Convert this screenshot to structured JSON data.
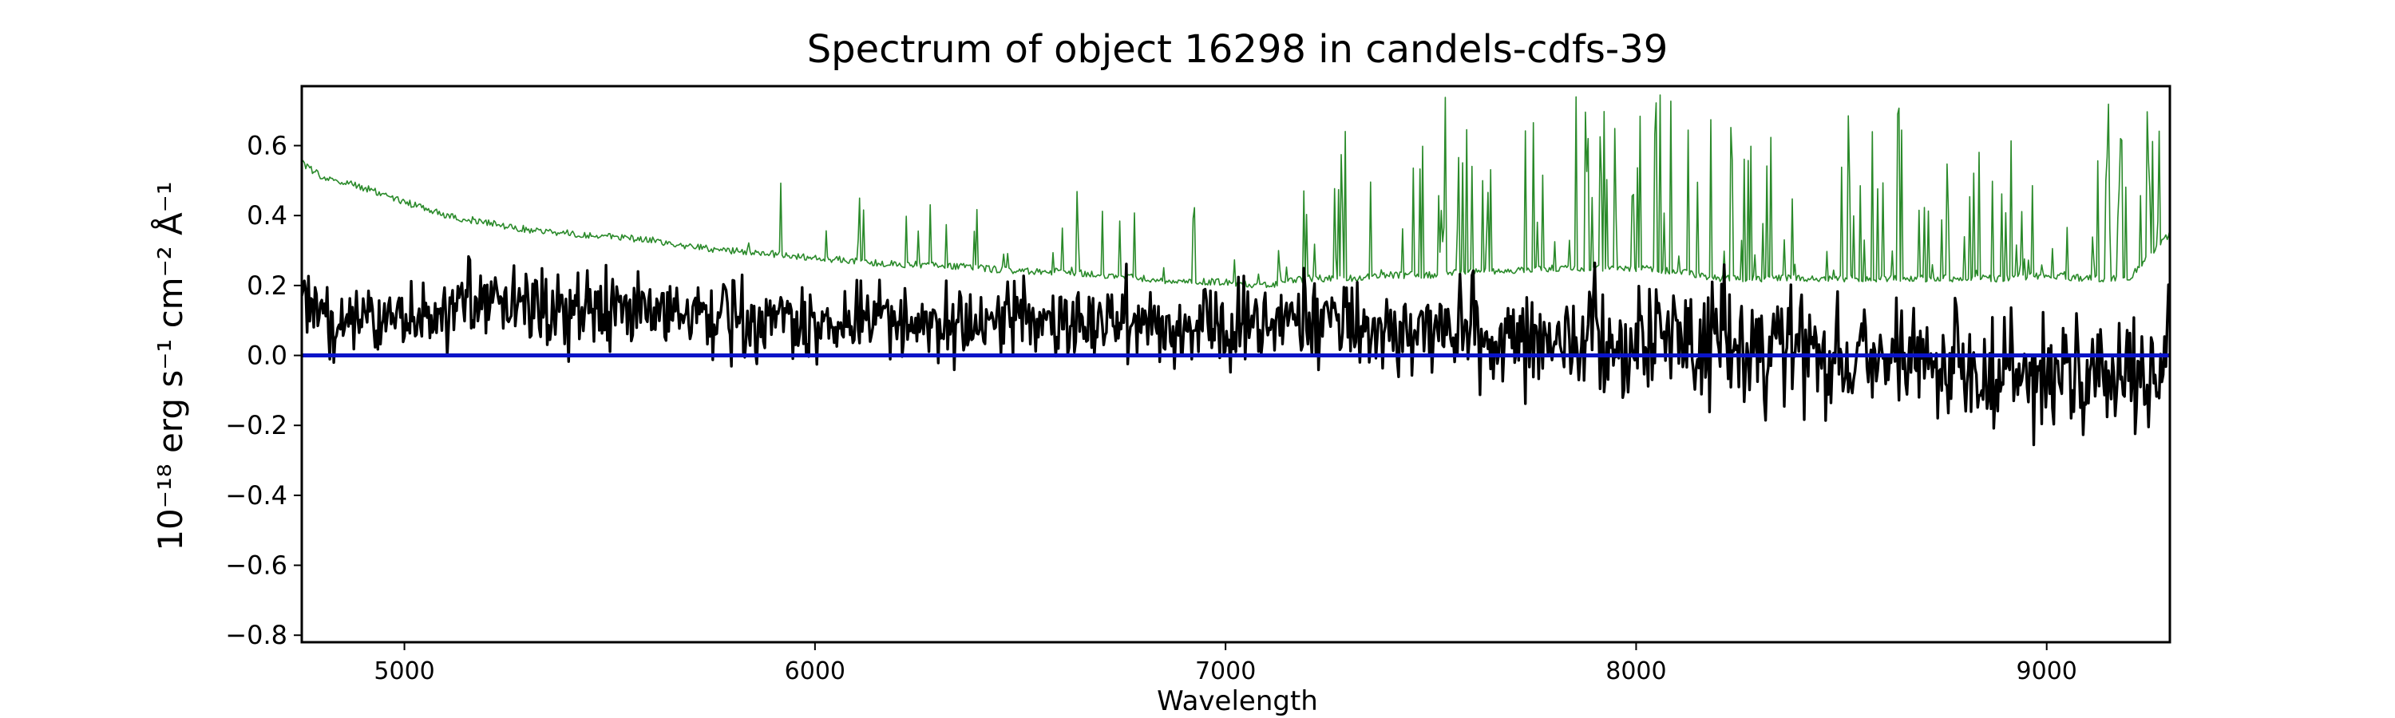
{
  "chart_data": {
    "type": "line",
    "title": "Spectrum of object 16298 in candels-cdfs-39",
    "xlabel": "Wavelength",
    "ylabel": "10⁻¹⁸ erg s⁻¹ cm⁻² Å⁻¹",
    "xlim": [
      4750,
      9300
    ],
    "ylim": [
      -0.82,
      0.77
    ],
    "xticks": [
      5000,
      6000,
      7000,
      8000,
      9000
    ],
    "xtick_labels": [
      "5000",
      "6000",
      "7000",
      "8000",
      "9000"
    ],
    "yticks": [
      -0.8,
      -0.6,
      -0.4,
      -0.2,
      0.0,
      0.2,
      0.4,
      0.6
    ],
    "ytick_labels": [
      "−0.8",
      "−0.6",
      "−0.4",
      "−0.2",
      "0.0",
      "0.2",
      "0.4",
      "0.6"
    ],
    "grid": false,
    "legend": "none",
    "series": [
      {
        "role": "flux",
        "color": "#000000",
        "x": [
          4750,
          4850,
          4950,
          5050,
          5150,
          5250,
          5350,
          5450,
          5550,
          5650,
          5750,
          5850,
          5950,
          6050,
          6150,
          6250,
          6350,
          6450,
          6550,
          6650,
          6750,
          6850,
          6950,
          7050,
          7150,
          7250,
          7350,
          7450,
          7550,
          7650,
          7750,
          7850,
          7950,
          8050,
          8150,
          8250,
          8350,
          8450,
          8550,
          8650,
          8750,
          8850,
          8950,
          9050,
          9150,
          9250,
          9300
        ],
        "y": [
          0.12,
          0.1,
          0.1,
          0.12,
          0.15,
          0.15,
          0.13,
          0.13,
          0.12,
          0.12,
          0.12,
          0.12,
          0.11,
          0.1,
          0.1,
          0.1,
          0.1,
          0.1,
          0.1,
          0.09,
          0.09,
          0.09,
          0.09,
          0.09,
          0.1,
          0.09,
          0.08,
          0.07,
          0.06,
          0.05,
          0.05,
          0.05,
          0.05,
          0.04,
          0.03,
          0.02,
          0.01,
          0.0,
          -0.02,
          -0.03,
          -0.04,
          -0.05,
          -0.05,
          -0.05,
          -0.06,
          -0.06,
          0.08
        ]
      },
      {
        "role": "contamination",
        "color": "#2a8a2a",
        "x": [
          4750,
          4800,
          4900,
          5000,
          5100,
          5200,
          5300,
          5400,
          5500,
          5600,
          5700,
          5800,
          5900,
          6000,
          6100,
          6200,
          6300,
          6400,
          6500,
          6600,
          6700,
          6800,
          6900,
          7000,
          7100,
          7200,
          7300,
          7400,
          7500,
          7600,
          7700,
          7800,
          7900,
          8000,
          8100,
          8200,
          8300,
          8400,
          8500,
          8600,
          8700,
          8800,
          8900,
          9000,
          9100,
          9200,
          9300
        ],
        "y": [
          0.55,
          0.51,
          0.48,
          0.44,
          0.4,
          0.38,
          0.36,
          0.35,
          0.34,
          0.33,
          0.31,
          0.3,
          0.29,
          0.28,
          0.27,
          0.26,
          0.26,
          0.25,
          0.24,
          0.24,
          0.23,
          0.22,
          0.21,
          0.21,
          0.2,
          0.22,
          0.22,
          0.23,
          0.23,
          0.24,
          0.24,
          0.25,
          0.25,
          0.25,
          0.24,
          0.22,
          0.22,
          0.22,
          0.22,
          0.22,
          0.22,
          0.22,
          0.22,
          0.23,
          0.22,
          0.22,
          0.35
        ]
      },
      {
        "role": "zero",
        "color": "#0a14c8",
        "x": [
          4750,
          9300
        ],
        "y": [
          0.0,
          0.0
        ]
      }
    ]
  }
}
